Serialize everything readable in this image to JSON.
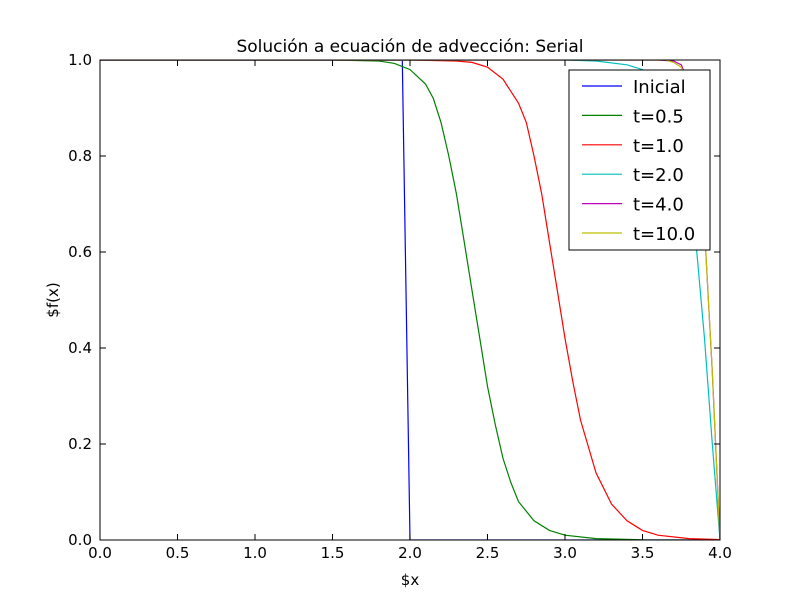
{
  "chart_data": {
    "type": "line",
    "title": "Solución a ecuación de advección: Serial",
    "xlabel": "$x",
    "ylabel": "$f(x)",
    "xlim": [
      0.0,
      4.0
    ],
    "ylim": [
      0.0,
      1.0
    ],
    "x_ticks": [
      "0.0",
      "0.5",
      "1.0",
      "1.5",
      "2.0",
      "2.5",
      "3.0",
      "3.5",
      "4.0"
    ],
    "y_ticks": [
      "0.0",
      "0.2",
      "0.4",
      "0.6",
      "0.8",
      "1.0"
    ],
    "grid": false,
    "legend_position": "top-right",
    "series": [
      {
        "name": "Inicial",
        "color": "#0000ff",
        "x": [
          0.0,
          1.95,
          2.0,
          4.0
        ],
        "y": [
          1.0,
          1.0,
          0.0,
          0.0
        ]
      },
      {
        "name": "t=0.5",
        "color": "#008000",
        "x": [
          0.0,
          1.5,
          1.8,
          1.9,
          2.0,
          2.1,
          2.15,
          2.2,
          2.25,
          2.3,
          2.35,
          2.4,
          2.45,
          2.5,
          2.55,
          2.6,
          2.65,
          2.7,
          2.8,
          2.9,
          3.0,
          3.2,
          3.5,
          4.0
        ],
        "y": [
          1.0,
          1.0,
          0.998,
          0.993,
          0.98,
          0.95,
          0.92,
          0.87,
          0.8,
          0.72,
          0.62,
          0.52,
          0.42,
          0.32,
          0.24,
          0.17,
          0.12,
          0.08,
          0.04,
          0.02,
          0.01,
          0.003,
          0.0005,
          0.0
        ]
      },
      {
        "name": "t=1.0",
        "color": "#ff0000",
        "x": [
          0.0,
          2.0,
          2.3,
          2.4,
          2.5,
          2.6,
          2.7,
          2.75,
          2.8,
          2.85,
          2.9,
          2.95,
          3.0,
          3.05,
          3.1,
          3.2,
          3.3,
          3.4,
          3.5,
          3.6,
          3.8,
          3.98,
          4.0
        ],
        "y": [
          1.0,
          1.0,
          0.998,
          0.995,
          0.985,
          0.96,
          0.91,
          0.87,
          0.8,
          0.72,
          0.62,
          0.52,
          0.42,
          0.33,
          0.25,
          0.14,
          0.075,
          0.04,
          0.02,
          0.01,
          0.003,
          0.001,
          0.0
        ]
      },
      {
        "name": "t=2.0",
        "color": "#00bfbf",
        "x": [
          0.0,
          3.0,
          3.2,
          3.4,
          3.5,
          3.6,
          3.7,
          3.75,
          3.8,
          3.85,
          3.9,
          3.95,
          4.0
        ],
        "y": [
          1.0,
          1.0,
          0.998,
          0.99,
          0.98,
          0.95,
          0.89,
          0.83,
          0.74,
          0.6,
          0.42,
          0.2,
          0.0
        ]
      },
      {
        "name": "t=4.0",
        "color": "#bf00bf",
        "x": [
          0.0,
          3.6,
          3.7,
          3.75,
          3.8,
          3.85,
          3.9,
          3.95,
          4.0
        ],
        "y": [
          1.0,
          1.0,
          0.998,
          0.99,
          0.95,
          0.85,
          0.65,
          0.35,
          0.0
        ]
      },
      {
        "name": "t=10.0",
        "color": "#bfbf00",
        "x": [
          0.0,
          3.65,
          3.7,
          3.75,
          3.8,
          3.85,
          3.9,
          3.95,
          4.0
        ],
        "y": [
          1.0,
          1.0,
          0.995,
          0.985,
          0.95,
          0.85,
          0.65,
          0.35,
          0.0
        ]
      }
    ]
  }
}
